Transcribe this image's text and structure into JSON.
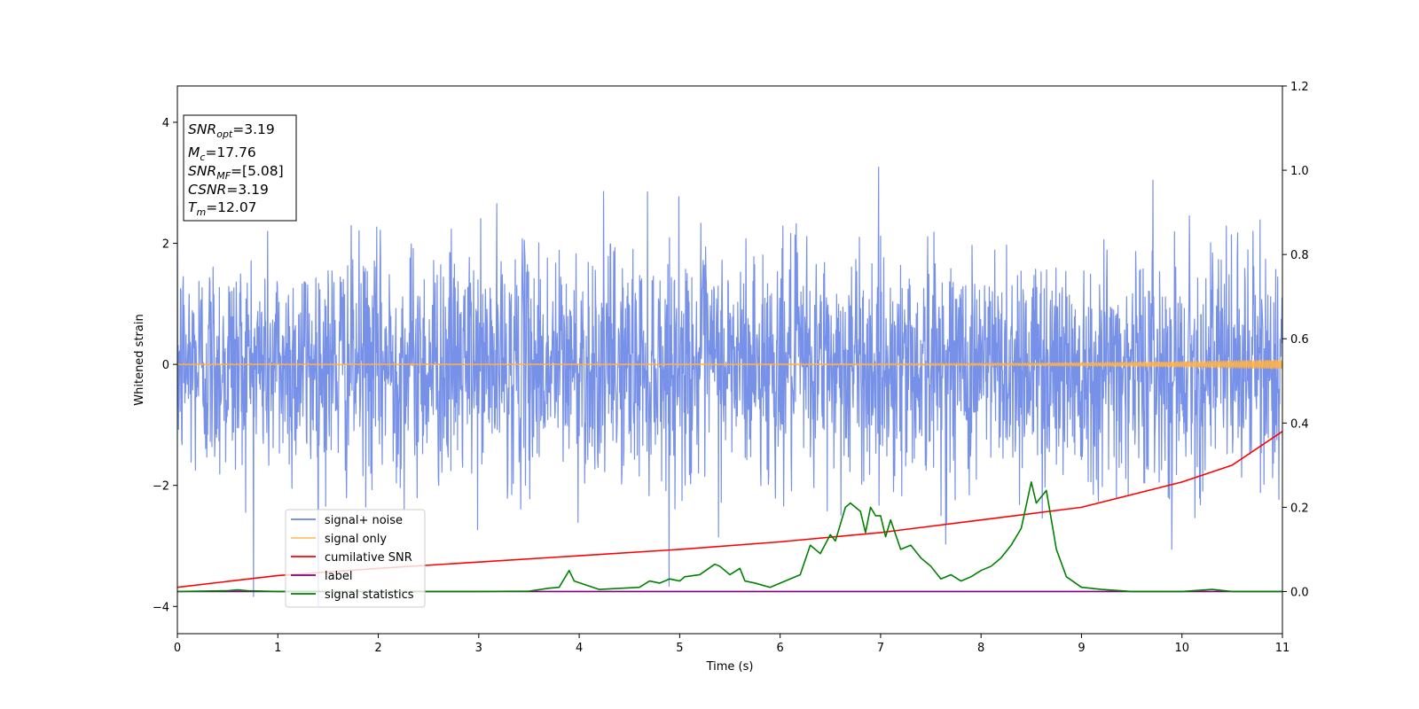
{
  "chart_data": {
    "type": "line",
    "xlabel": "Time (s)",
    "ylabel": "Whitened strain",
    "xlim": [
      0,
      11
    ],
    "ylim_left": [
      -4.45,
      4.6
    ],
    "ylim_right": [
      -0.1,
      1.2
    ],
    "x_ticks": [
      "0",
      "1",
      "2",
      "3",
      "4",
      "5",
      "6",
      "7",
      "8",
      "9",
      "10",
      "11"
    ],
    "y_left_ticks": [
      {
        "value": 4,
        "label": "4"
      },
      {
        "value": 2,
        "label": "2"
      },
      {
        "value": 0,
        "label": "0"
      },
      {
        "value": -2,
        "label": "−2"
      },
      {
        "value": -4,
        "label": "−4"
      }
    ],
    "y_right_ticks": [
      {
        "value": 1.2,
        "label": "1.2"
      },
      {
        "value": 1.0,
        "label": "1.0"
      },
      {
        "value": 0.8,
        "label": "0.8"
      },
      {
        "value": 0.6,
        "label": "0.6"
      },
      {
        "value": 0.4,
        "label": "0.4"
      },
      {
        "value": 0.2,
        "label": "0.2"
      },
      {
        "value": 0.0,
        "label": "0.0"
      }
    ],
    "annotation": {
      "lines": [
        {
          "base": "SNR",
          "sub": "opt",
          "rest": "=3.19"
        },
        {
          "base": "M",
          "sub": "c",
          "rest": "=17.76"
        },
        {
          "base": "SNR",
          "sub": "MF",
          "rest": "=[5.08]"
        },
        {
          "base": "CSNR",
          "sub": "",
          "rest": "=3.19"
        },
        {
          "base": "T",
          "sub": "m",
          "rest": "=12.07"
        }
      ]
    },
    "legend": {
      "placement": "lower-left",
      "entries": [
        {
          "label": "signal+ noise",
          "color": "#6a86e6"
        },
        {
          "label": "signal only",
          "color": "#ffc36b"
        },
        {
          "label": "cumilative SNR",
          "color": "#ff0000"
        },
        {
          "label": "label",
          "color": "#800080"
        },
        {
          "label": "signal statistics",
          "color": "#008000"
        }
      ]
    },
    "series": [
      {
        "name": "signal+ noise",
        "axis": "left",
        "color": "#7891e8",
        "style": "noise",
        "noise_std": 0.95,
        "sample_rate_hz": 256,
        "ylim_observed": [
          -4.05,
          4.18
        ]
      },
      {
        "name": "signal only",
        "axis": "left",
        "color": "#ffb347",
        "style": "chirp",
        "amplitude_start": 0.005,
        "amplitude_end": 0.07
      },
      {
        "name": "cumilative SNR",
        "axis": "right",
        "color": "#ff0000",
        "x": [
          0,
          1,
          2,
          3,
          4,
          5,
          6,
          7,
          8,
          9,
          10,
          10.5,
          11
        ],
        "y": [
          0.01,
          0.038,
          0.055,
          0.07,
          0.085,
          0.1,
          0.118,
          0.14,
          0.17,
          0.2,
          0.26,
          0.3,
          0.38
        ]
      },
      {
        "name": "label",
        "axis": "right",
        "color": "#800080",
        "x": [
          0,
          11
        ],
        "y": [
          0,
          0
        ]
      },
      {
        "name": "signal statistics",
        "axis": "right",
        "color": "#008000",
        "x": [
          0,
          0.5,
          0.6,
          0.7,
          1,
          2,
          3,
          3.5,
          3.7,
          3.8,
          3.9,
          3.95,
          4.2,
          4.6,
          4.7,
          4.8,
          4.9,
          5.0,
          5.05,
          5.2,
          5.35,
          5.4,
          5.5,
          5.6,
          5.65,
          5.75,
          5.9,
          6.0,
          6.1,
          6.2,
          6.3,
          6.4,
          6.5,
          6.55,
          6.65,
          6.7,
          6.8,
          6.85,
          6.9,
          6.95,
          7.0,
          7.05,
          7.1,
          7.2,
          7.3,
          7.4,
          7.5,
          7.6,
          7.7,
          7.8,
          7.9,
          8.0,
          8.1,
          8.2,
          8.3,
          8.4,
          8.5,
          8.55,
          8.65,
          8.75,
          8.85,
          9.0,
          9.2,
          9.5,
          10,
          10.3,
          10.5,
          11
        ],
        "y": [
          0,
          0.002,
          0.004,
          0.002,
          0,
          0,
          0,
          0.001,
          0.008,
          0.01,
          0.05,
          0.025,
          0.005,
          0.01,
          0.025,
          0.02,
          0.03,
          0.025,
          0.035,
          0.04,
          0.065,
          0.06,
          0.04,
          0.055,
          0.025,
          0.02,
          0.01,
          0.02,
          0.03,
          0.04,
          0.11,
          0.09,
          0.135,
          0.12,
          0.2,
          0.21,
          0.19,
          0.14,
          0.2,
          0.18,
          0.18,
          0.13,
          0.17,
          0.1,
          0.11,
          0.08,
          0.06,
          0.03,
          0.04,
          0.025,
          0.035,
          0.05,
          0.06,
          0.08,
          0.11,
          0.15,
          0.26,
          0.21,
          0.24,
          0.1,
          0.035,
          0.01,
          0.005,
          0,
          0,
          0.005,
          0,
          0
        ]
      }
    ]
  }
}
